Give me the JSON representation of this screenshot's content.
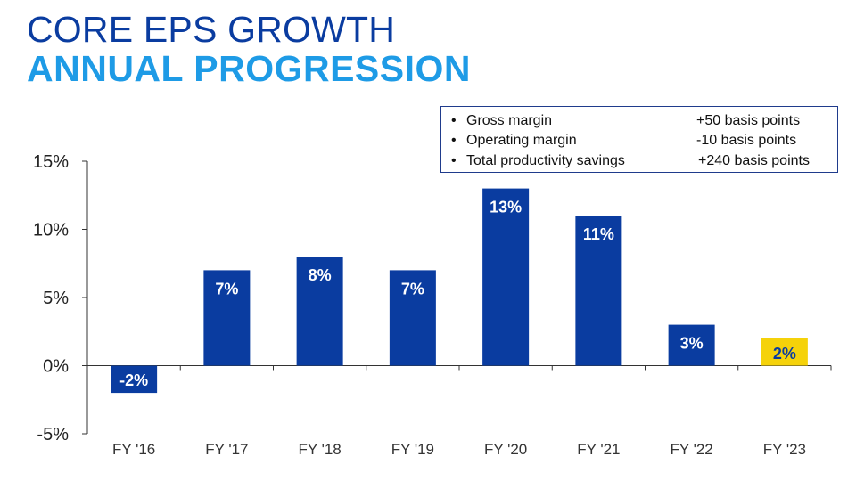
{
  "title": "CORE EPS GROWTH",
  "subtitle": "ANNUAL PROGRESSION",
  "info_box": [
    {
      "label": "Gross margin",
      "value": "+50 basis points"
    },
    {
      "label": "Operating margin",
      "value": "-10 basis points"
    },
    {
      "label": "Total productivity savings",
      "value": "+240 basis points"
    }
  ],
  "colors": {
    "bar": "#0a3ca0",
    "highlight": "#f5d20a",
    "title": "#0a3ca0",
    "subtitle": "#1e9be6"
  },
  "chart_data": {
    "type": "bar",
    "categories": [
      "FY '16",
      "FY '17",
      "FY '18",
      "FY '19",
      "FY '20",
      "FY '21",
      "FY '22",
      "FY '23"
    ],
    "values": [
      -2,
      7,
      8,
      7,
      13,
      11,
      3,
      2
    ],
    "data_labels": [
      "-2%",
      "7%",
      "8%",
      "7%",
      "13%",
      "11%",
      "3%",
      "2%"
    ],
    "highlighted": [
      false,
      false,
      false,
      false,
      false,
      false,
      false,
      true
    ],
    "yticks": [
      15,
      10,
      5,
      0,
      -5
    ],
    "ytick_labels": [
      "15%",
      "10%",
      "5%",
      "0%",
      "-5%"
    ],
    "ylim": [
      -5,
      15
    ],
    "grid": false
  }
}
